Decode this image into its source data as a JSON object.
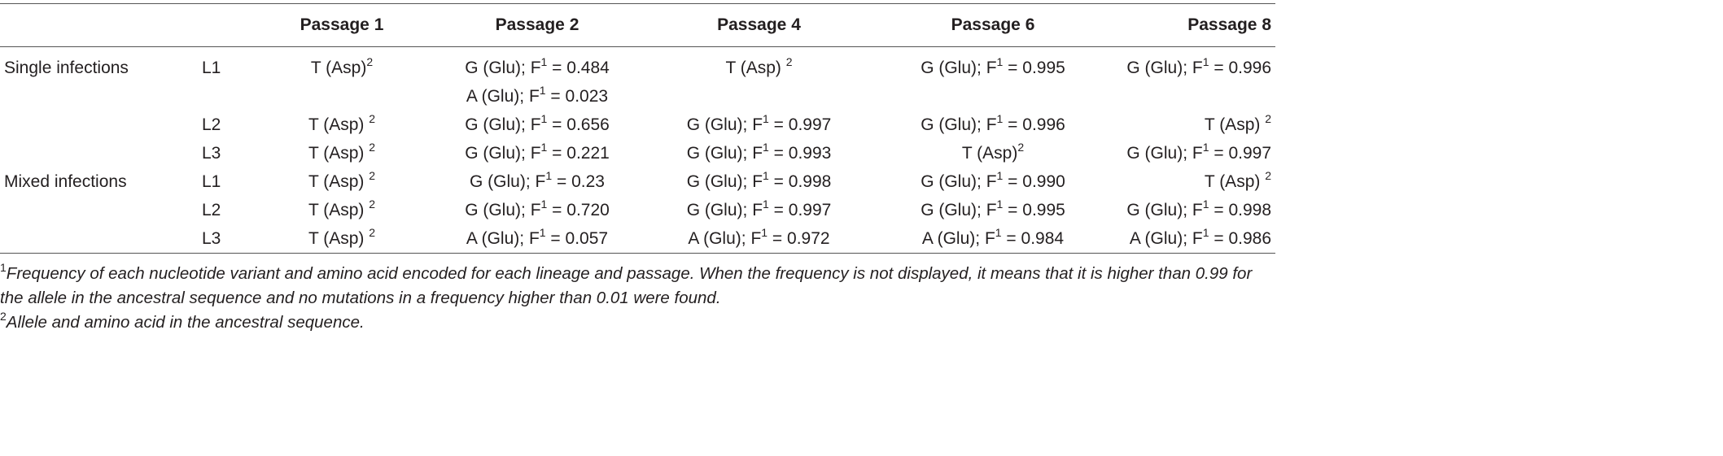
{
  "table": {
    "headers": [
      "Passage 1",
      "Passage 2",
      "Passage 4",
      "Passage 6",
      "Passage 8"
    ],
    "rows": [
      {
        "group": "Single infections",
        "lineage": "L1",
        "cells": [
          [
            [
              {
                "text": "T (Asp)"
              },
              {
                "sup": "2"
              }
            ]
          ],
          [
            [
              {
                "text": "G (Glu); F"
              },
              {
                "sup": "1"
              },
              {
                "text": " = 0.484"
              }
            ],
            [
              {
                "text": "A (Glu); F"
              },
              {
                "sup": "1"
              },
              {
                "text": " = 0.023"
              }
            ]
          ],
          [
            [
              {
                "text": "T (Asp) "
              },
              {
                "sup": "2"
              }
            ]
          ],
          [
            [
              {
                "text": "G (Glu); F"
              },
              {
                "sup": "1"
              },
              {
                "text": " = 0.995"
              }
            ]
          ],
          [
            [
              {
                "text": "G (Glu); F"
              },
              {
                "sup": "1"
              },
              {
                "text": " = 0.996"
              }
            ]
          ]
        ]
      },
      {
        "lineage": "L2",
        "cells": [
          [
            [
              {
                "text": "T (Asp) "
              },
              {
                "sup": "2"
              }
            ]
          ],
          [
            [
              {
                "text": "G (Glu); F"
              },
              {
                "sup": "1"
              },
              {
                "text": " = 0.656"
              }
            ]
          ],
          [
            [
              {
                "text": "G (Glu); F"
              },
              {
                "sup": "1"
              },
              {
                "text": " = 0.997"
              }
            ]
          ],
          [
            [
              {
                "text": "G (Glu); F"
              },
              {
                "sup": "1"
              },
              {
                "text": " = 0.996"
              }
            ]
          ],
          [
            [
              {
                "text": "T (Asp) "
              },
              {
                "sup": "2"
              }
            ]
          ]
        ]
      },
      {
        "lineage": "L3",
        "cells": [
          [
            [
              {
                "text": "T (Asp) "
              },
              {
                "sup": "2"
              }
            ]
          ],
          [
            [
              {
                "text": "G (Glu); F"
              },
              {
                "sup": "1"
              },
              {
                "text": " = 0.221"
              }
            ]
          ],
          [
            [
              {
                "text": "G (Glu); F"
              },
              {
                "sup": "1"
              },
              {
                "text": " = 0.993"
              }
            ]
          ],
          [
            [
              {
                "text": "T (Asp)"
              },
              {
                "sup": "2"
              }
            ]
          ],
          [
            [
              {
                "text": "G (Glu); F"
              },
              {
                "sup": "1"
              },
              {
                "text": " = 0.997"
              }
            ]
          ]
        ]
      },
      {
        "group": "Mixed infections",
        "lineage": "L1",
        "cells": [
          [
            [
              {
                "text": "T (Asp) "
              },
              {
                "sup": "2"
              }
            ]
          ],
          [
            [
              {
                "text": "G (Glu); F"
              },
              {
                "sup": "1"
              },
              {
                "text": " = 0.23"
              }
            ]
          ],
          [
            [
              {
                "text": "G (Glu); F"
              },
              {
                "sup": "1"
              },
              {
                "text": " = 0.998"
              }
            ]
          ],
          [
            [
              {
                "text": "G (Glu); F"
              },
              {
                "sup": "1"
              },
              {
                "text": " = 0.990"
              }
            ]
          ],
          [
            [
              {
                "text": "T (Asp) "
              },
              {
                "sup": "2"
              }
            ]
          ]
        ]
      },
      {
        "lineage": "L2",
        "cells": [
          [
            [
              {
                "text": "T (Asp) "
              },
              {
                "sup": "2"
              }
            ]
          ],
          [
            [
              {
                "text": "G (Glu); F"
              },
              {
                "sup": "1"
              },
              {
                "text": " = 0.720"
              }
            ]
          ],
          [
            [
              {
                "text": "G (Glu); F"
              },
              {
                "sup": "1"
              },
              {
                "text": " = 0.997"
              }
            ]
          ],
          [
            [
              {
                "text": "G (Glu); F"
              },
              {
                "sup": "1"
              },
              {
                "text": " = 0.995"
              }
            ]
          ],
          [
            [
              {
                "text": "G (Glu); F"
              },
              {
                "sup": "1"
              },
              {
                "text": " = 0.998"
              }
            ]
          ]
        ]
      },
      {
        "lineage": "L3",
        "cells": [
          [
            [
              {
                "text": "T (Asp) "
              },
              {
                "sup": "2"
              }
            ]
          ],
          [
            [
              {
                "text": "A (Glu); F"
              },
              {
                "sup": "1"
              },
              {
                "text": " = 0.057"
              }
            ]
          ],
          [
            [
              {
                "text": "A (Glu); F"
              },
              {
                "sup": "1"
              },
              {
                "text": " = 0.972"
              }
            ]
          ],
          [
            [
              {
                "text": "A (Glu); F"
              },
              {
                "sup": "1"
              },
              {
                "text": " = 0.984"
              }
            ]
          ],
          [
            [
              {
                "text": "A (Glu); F"
              },
              {
                "sup": "1"
              },
              {
                "text": " = 0.986"
              }
            ]
          ]
        ]
      }
    ]
  },
  "footnotes": [
    [
      {
        "sup": "1"
      },
      {
        "text": "Frequency of each nucleotide variant and amino acid encoded for each lineage and passage. When the frequency is not displayed, it means that it is higher than 0.99 for the allele in the ancestral sequence and no mutations in a frequency higher than 0.01 were found."
      }
    ],
    [
      {
        "sup": "2"
      },
      {
        "text": "Allele and amino acid in the ancestral sequence."
      }
    ]
  ]
}
